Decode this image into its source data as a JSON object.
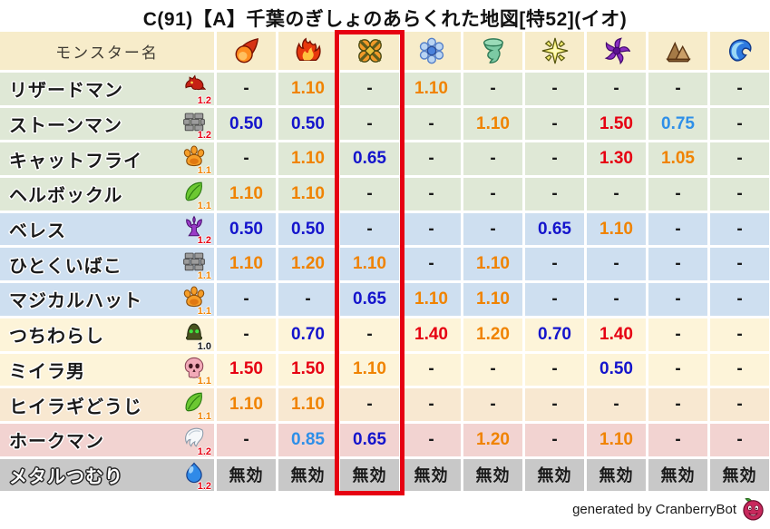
{
  "title": "C(91)【A】千葉のぎしょのあらくれた地図[特52](イオ)",
  "footer": {
    "credit": "generated by CranberryBot",
    "icon": "cranberry-icon"
  },
  "theme": {
    "accent_red": "#e60012",
    "header_text": "#3f3b33",
    "row_bg": {
      "header": "#f7ecca",
      "green": "#dfe8d6",
      "blue": "#cedff0",
      "cream": "#fdf4d9",
      "peach": "#f8e8d1",
      "pink": "#f2d3d1",
      "gray": "#c8c8c8"
    },
    "value_colors": {
      "strong_resist": "#1414cc",
      "mild_resist": "#2e8fe8",
      "mild_weak": "#f08300",
      "strong_weak": "#e60012",
      "neutral": "#1a1a1a"
    },
    "multiplier_colors": {
      "red": "#e60012",
      "orange": "#f08300",
      "black": "#1a1a1a"
    }
  },
  "table": {
    "name_header": "モンスター名",
    "highlighted_column_index": 2,
    "element_columns": [
      {
        "element": "fire",
        "icon": "fireball-icon"
      },
      {
        "element": "blaze",
        "icon": "flame-icon"
      },
      {
        "element": "explosion",
        "icon": "explosion-icon"
      },
      {
        "element": "ice",
        "icon": "snowflake-icon"
      },
      {
        "element": "wind",
        "icon": "tornado-icon"
      },
      {
        "element": "light",
        "icon": "sparkle-icon"
      },
      {
        "element": "dark",
        "icon": "dark-swirl-icon"
      },
      {
        "element": "earth",
        "icon": "rock-icon"
      },
      {
        "element": "water",
        "icon": "wave-icon"
      }
    ],
    "rows": [
      {
        "name": "リザードマン",
        "family_icon": "dragon-icon",
        "multiplier": "1.2",
        "multiplier_color": "red",
        "bg": "green",
        "values": [
          "-",
          "1.10",
          "-",
          "1.10",
          "-",
          "-",
          "-",
          "-",
          "-"
        ]
      },
      {
        "name": "ストーンマン",
        "family_icon": "brick-icon",
        "multiplier": "1.2",
        "multiplier_color": "red",
        "bg": "green",
        "values": [
          "0.50",
          "0.50",
          "-",
          "-",
          "1.10",
          "-",
          "1.50",
          "0.75",
          "-"
        ]
      },
      {
        "name": "キャットフライ",
        "family_icon": "paw-icon",
        "multiplier": "1.1",
        "multiplier_color": "orange",
        "bg": "green",
        "values": [
          "-",
          "1.10",
          "0.65",
          "-",
          "-",
          "-",
          "1.30",
          "1.05",
          "-"
        ]
      },
      {
        "name": "ヘルボックル",
        "family_icon": "leaf-icon",
        "multiplier": "1.1",
        "multiplier_color": "orange",
        "bg": "green",
        "values": [
          "1.10",
          "1.10",
          "-",
          "-",
          "-",
          "-",
          "-",
          "-",
          "-"
        ]
      },
      {
        "name": "ベレス",
        "family_icon": "demon-icon",
        "multiplier": "1.2",
        "multiplier_color": "red",
        "bg": "blue",
        "values": [
          "0.50",
          "0.50",
          "-",
          "-",
          "-",
          "0.65",
          "1.10",
          "-",
          "-"
        ]
      },
      {
        "name": "ひとくいばこ",
        "family_icon": "brick-icon",
        "multiplier": "1.1",
        "multiplier_color": "orange",
        "bg": "blue",
        "values": [
          "1.10",
          "1.20",
          "1.10",
          "-",
          "1.10",
          "-",
          "-",
          "-",
          "-"
        ]
      },
      {
        "name": "マジカルハット",
        "family_icon": "paw-icon",
        "multiplier": "1.1",
        "multiplier_color": "orange",
        "bg": "blue",
        "values": [
          "-",
          "-",
          "0.65",
          "1.10",
          "1.10",
          "-",
          "-",
          "-",
          "-"
        ]
      },
      {
        "name": "つちわらし",
        "family_icon": "helmet-icon",
        "multiplier": "1.0",
        "multiplier_color": "black",
        "bg": "cream",
        "values": [
          "-",
          "0.70",
          "-",
          "1.40",
          "1.20",
          "0.70",
          "1.40",
          "-",
          "-"
        ]
      },
      {
        "name": "ミイラ男",
        "family_icon": "skull-icon",
        "multiplier": "1.1",
        "multiplier_color": "orange",
        "bg": "cream",
        "values": [
          "1.50",
          "1.50",
          "1.10",
          "-",
          "-",
          "-",
          "0.50",
          "-",
          "-"
        ]
      },
      {
        "name": "ヒイラギどうじ",
        "family_icon": "leaf-icon",
        "multiplier": "1.1",
        "multiplier_color": "orange",
        "bg": "peach",
        "values": [
          "1.10",
          "1.10",
          "-",
          "-",
          "-",
          "-",
          "-",
          "-",
          "-"
        ]
      },
      {
        "name": "ホークマン",
        "family_icon": "wing-icon",
        "multiplier": "1.2",
        "multiplier_color": "red",
        "bg": "pink",
        "values": [
          "-",
          "0.85",
          "0.65",
          "-",
          "1.20",
          "-",
          "1.10",
          "-",
          "-"
        ]
      },
      {
        "name": "メタルつむり",
        "family_icon": "slime-icon",
        "multiplier": "1.2",
        "multiplier_color": "red",
        "bg": "gray",
        "values": [
          "無効",
          "無効",
          "無効",
          "無効",
          "無効",
          "無効",
          "無効",
          "無効",
          "無効"
        ]
      }
    ]
  },
  "chart_data": {
    "type": "table",
    "title": "C(91)【A】千葉のぎしょのあらくれた地図[特52](イオ)",
    "columns": [
      "モンスター名",
      "fire",
      "blaze",
      "explosion",
      "ice",
      "wind",
      "light",
      "dark",
      "earth",
      "water"
    ],
    "highlighted_column": "explosion",
    "rows": [
      [
        "リザードマン",
        "-",
        "1.10",
        "-",
        "1.10",
        "-",
        "-",
        "-",
        "-",
        "-"
      ],
      [
        "ストーンマン",
        "0.50",
        "0.50",
        "-",
        "-",
        "1.10",
        "-",
        "1.50",
        "0.75",
        "-"
      ],
      [
        "キャットフライ",
        "-",
        "1.10",
        "0.65",
        "-",
        "-",
        "-",
        "1.30",
        "1.05",
        "-"
      ],
      [
        "ヘルボックル",
        "1.10",
        "1.10",
        "-",
        "-",
        "-",
        "-",
        "-",
        "-",
        "-"
      ],
      [
        "ベレス",
        "0.50",
        "0.50",
        "-",
        "-",
        "-",
        "0.65",
        "1.10",
        "-",
        "-"
      ],
      [
        "ひとくいばこ",
        "1.10",
        "1.20",
        "1.10",
        "-",
        "1.10",
        "-",
        "-",
        "-",
        "-"
      ],
      [
        "マジカルハット",
        "-",
        "-",
        "0.65",
        "1.10",
        "1.10",
        "-",
        "-",
        "-",
        "-"
      ],
      [
        "つちわらし",
        "-",
        "0.70",
        "-",
        "1.40",
        "1.20",
        "0.70",
        "1.40",
        "-",
        "-"
      ],
      [
        "ミイラ男",
        "1.50",
        "1.50",
        "1.10",
        "-",
        "-",
        "-",
        "0.50",
        "-",
        "-"
      ],
      [
        "ヒイラギどうじ",
        "1.10",
        "1.10",
        "-",
        "-",
        "-",
        "-",
        "-",
        "-",
        "-"
      ],
      [
        "ホークマン",
        "-",
        "0.85",
        "0.65",
        "-",
        "1.20",
        "-",
        "1.10",
        "-",
        "-"
      ],
      [
        "メタルつむり",
        "無効",
        "無効",
        "無効",
        "無効",
        "無効",
        "無効",
        "無効",
        "無効",
        "無効"
      ]
    ]
  }
}
